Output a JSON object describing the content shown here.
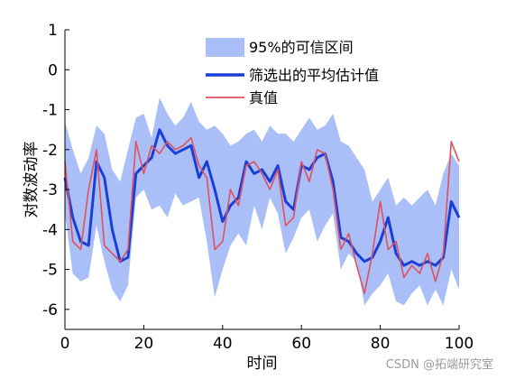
{
  "chart_data": {
    "type": "line",
    "xlabel": "时间",
    "ylabel": "对数波动率",
    "xlim": [
      0,
      100
    ],
    "ylim": [
      -6.5,
      1
    ],
    "xticks": [
      0,
      20,
      40,
      60,
      80,
      100
    ],
    "yticks": [
      1,
      0,
      -1,
      -2,
      -3,
      -4,
      -5,
      -6
    ],
    "legend_position": "top-center",
    "grid": false,
    "x": [
      0,
      2,
      4,
      6,
      8,
      10,
      12,
      14,
      16,
      18,
      20,
      22,
      24,
      26,
      28,
      30,
      32,
      34,
      36,
      38,
      40,
      42,
      44,
      46,
      48,
      50,
      52,
      54,
      56,
      58,
      60,
      62,
      64,
      66,
      68,
      70,
      72,
      74,
      76,
      78,
      80,
      82,
      84,
      86,
      88,
      90,
      92,
      94,
      96,
      98,
      100
    ],
    "series": [
      {
        "name": "95%的可信区间",
        "kind": "band",
        "color": "#aabff7",
        "lower": [
          -3.6,
          -5.1,
          -5.3,
          -5.2,
          -3.9,
          -4.8,
          -5.5,
          -5.8,
          -5.4,
          -3.2,
          -3.0,
          -3.5,
          -3.4,
          -3.7,
          -3.1,
          -3.4,
          -3.3,
          -3.2,
          -4.3,
          -5.7,
          -5.0,
          -4.4,
          -4.1,
          -4.4,
          -3.4,
          -4.0,
          -3.2,
          -3.6,
          -4.6,
          -4.2,
          -3.7,
          -3.5,
          -4.3,
          -3.9,
          -3.6,
          -5.0,
          -4.6,
          -4.8,
          -5.9,
          -5.6,
          -5.4,
          -5.1,
          -5.8,
          -5.9,
          -5.6,
          -5.4,
          -5.9,
          -5.5,
          -5.9,
          -5.0,
          -5.5
        ],
        "upper": [
          -1.3,
          -2.0,
          -2.6,
          -2.2,
          -1.4,
          -1.6,
          -2.5,
          -2.8,
          -2.0,
          -1.2,
          -1.1,
          -1.7,
          -0.7,
          -1.1,
          -1.4,
          -1.2,
          -0.8,
          -1.3,
          -1.5,
          -1.4,
          -1.6,
          -1.9,
          -1.8,
          -1.6,
          -1.5,
          -1.8,
          -1.4,
          -1.6,
          -1.6,
          -1.8,
          -1.5,
          -1.2,
          -1.5,
          -1.4,
          -1.1,
          -1.8,
          -1.9,
          -2.2,
          -2.5,
          -3.3,
          -3.0,
          -2.7,
          -3.4,
          -3.2,
          -3.4,
          -3.2,
          -3.0,
          -3.4,
          -2.6,
          -2.1,
          -2.4
        ]
      },
      {
        "name": "筛选出的平均估计值",
        "kind": "line",
        "color": "#1a3fd9",
        "values": [
          -2.7,
          -3.7,
          -4.3,
          -4.4,
          -2.3,
          -2.7,
          -4.0,
          -4.8,
          -4.7,
          -2.6,
          -2.4,
          -2.2,
          -1.5,
          -1.9,
          -2.1,
          -2.0,
          -1.9,
          -2.7,
          -2.3,
          -3.0,
          -3.8,
          -3.4,
          -3.2,
          -2.3,
          -2.6,
          -2.5,
          -2.8,
          -2.4,
          -3.3,
          -3.5,
          -2.4,
          -2.5,
          -2.2,
          -2.1,
          -2.8,
          -4.2,
          -4.3,
          -4.6,
          -4.8,
          -4.7,
          -4.3,
          -3.7,
          -4.6,
          -4.9,
          -4.8,
          -4.9,
          -4.8,
          -4.9,
          -4.7,
          -3.3,
          -3.7
        ]
      },
      {
        "name": "真值",
        "kind": "line",
        "color": "#e0505f",
        "values": [
          -2.3,
          -4.3,
          -4.5,
          -3.0,
          -2.0,
          -4.4,
          -4.6,
          -4.8,
          -4.5,
          -1.8,
          -2.6,
          -1.9,
          -2.1,
          -1.8,
          -2.0,
          -1.9,
          -1.7,
          -2.4,
          -2.7,
          -4.5,
          -4.3,
          -3.0,
          -3.4,
          -2.4,
          -2.3,
          -2.6,
          -3.0,
          -2.5,
          -3.9,
          -3.7,
          -2.3,
          -2.8,
          -2.0,
          -2.1,
          -3.0,
          -4.5,
          -4.1,
          -4.9,
          -5.6,
          -4.6,
          -3.3,
          -4.5,
          -4.3,
          -5.2,
          -4.9,
          -5.1,
          -4.6,
          -5.3,
          -4.6,
          -1.8,
          -2.3
        ]
      }
    ]
  },
  "watermark": "CSDN @拓端研究室"
}
